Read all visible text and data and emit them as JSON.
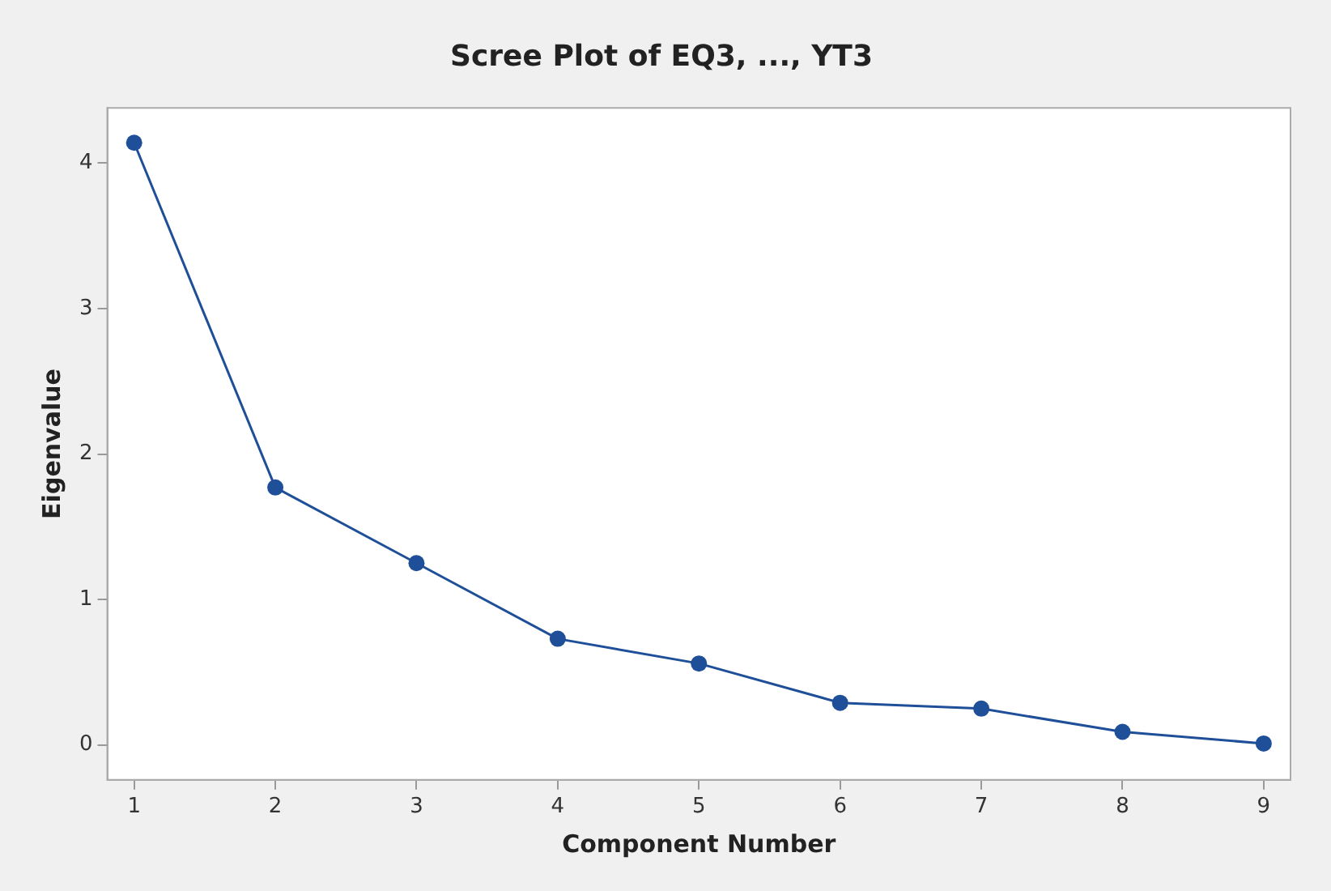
{
  "chart_data": {
    "type": "line",
    "title": "Scree Plot of EQ3, ..., YT3",
    "xlabel": "Component Number",
    "ylabel": "Eigenvalue",
    "x": [
      1,
      2,
      3,
      4,
      5,
      6,
      7,
      8,
      9
    ],
    "series": [
      {
        "color": "#1f4f98",
        "values": [
          4.14,
          1.77,
          1.25,
          0.73,
          0.56,
          0.29,
          0.25,
          0.09,
          0.01
        ]
      }
    ],
    "xlim": [
      0.81,
      9.19
    ],
    "xticks": [
      1,
      2,
      3,
      4,
      5,
      6,
      7,
      8,
      9
    ],
    "ylim": [
      -0.24,
      4.38
    ],
    "yticks": [
      0,
      1,
      2,
      3,
      4
    ],
    "grid": false,
    "legend": false,
    "marker": "circle",
    "line_style": "solid"
  }
}
